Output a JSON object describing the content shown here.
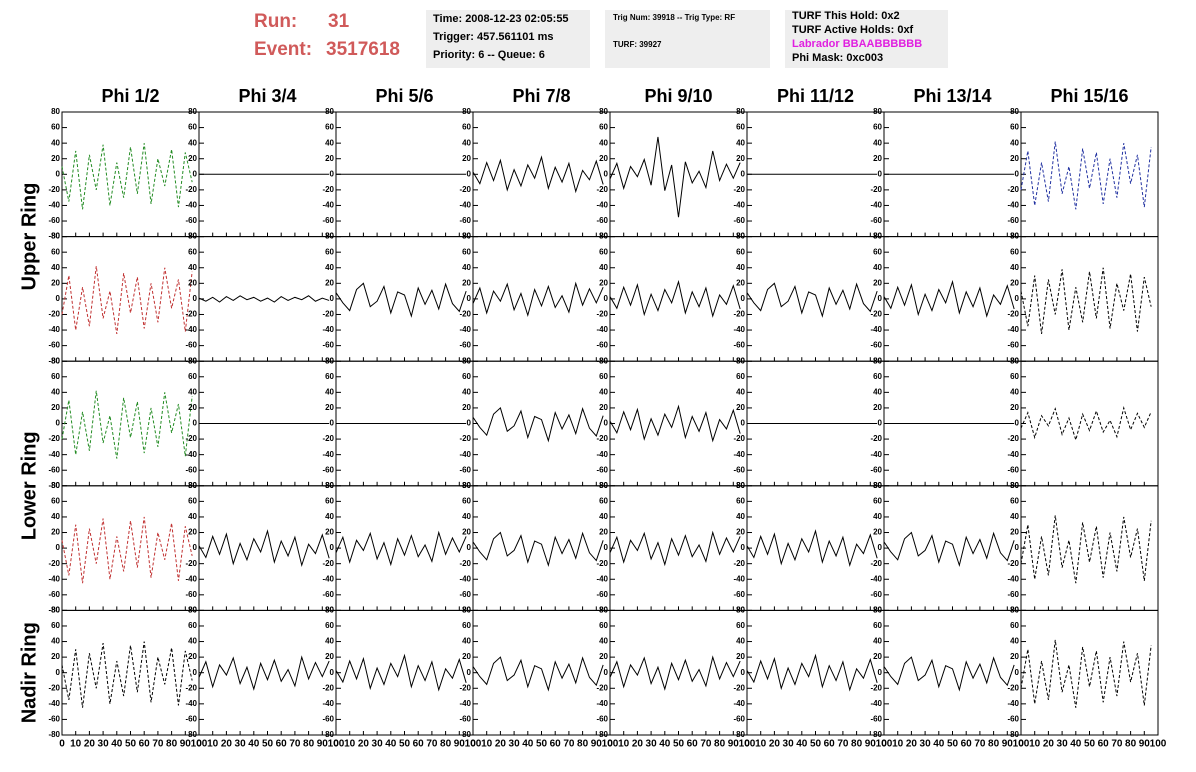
{
  "header": {
    "run_label": "Run:",
    "run": "31",
    "event_label": "Event:",
    "event": "3517618"
  },
  "info_boxes": [
    [
      "Time: 2008-12-23 02:05:55",
      "Trigger: 457.561101 ms",
      "Priority: 6 -- Queue: 6"
    ],
    [
      "Trig Num: 39918 -- Trig Type: RF",
      "TURF: 39927"
    ],
    [
      "TURF This Hold: 0x2",
      "TURF Active Holds: 0xf",
      "Labrador BBAABBBBBB",
      "Phi Mask: 0xc003"
    ]
  ],
  "chart_data": {
    "type": "line",
    "columns": [
      "Phi 1/2",
      "Phi 3/4",
      "Phi 5/6",
      "Phi 7/8",
      "Phi 9/10",
      "Phi 11/12",
      "Phi 13/14",
      "Phi 15/16"
    ],
    "rows": [
      "Upper Ring",
      "Lower Ring",
      "Nadir Ring"
    ],
    "x": [
      0,
      5,
      10,
      15,
      20,
      25,
      30,
      35,
      40,
      45,
      50,
      55,
      60,
      65,
      70,
      75,
      80,
      85,
      90,
      95
    ],
    "xlim": [
      0,
      100
    ],
    "ylim": [
      -80,
      80
    ],
    "xticks": [
      0,
      10,
      20,
      30,
      40,
      50,
      60,
      70,
      80,
      90,
      100
    ],
    "yticks": [
      -80,
      -60,
      -40,
      -20,
      0,
      20,
      40,
      60,
      80
    ],
    "series": [
      {
        "color": "#228b22",
        "dashed": true,
        "values": [
          10,
          -35,
          30,
          -45,
          25,
          -20,
          38,
          -40,
          15,
          -30,
          35,
          -25,
          40,
          -38,
          20,
          -15,
          32,
          -42,
          28,
          -10
        ]
      },
      {
        "color": "#000000",
        "dashed": false,
        "values": [
          0,
          0,
          0,
          0,
          0,
          0,
          0,
          0,
          0,
          0,
          0,
          0,
          0,
          0,
          0,
          0,
          0,
          0,
          0,
          0
        ]
      },
      {
        "color": "#000000",
        "dashed": false,
        "values": [
          0,
          0,
          0,
          0,
          0,
          0,
          0,
          0,
          0,
          0,
          0,
          0,
          0,
          0,
          0,
          0,
          0,
          0,
          0,
          0
        ]
      },
      {
        "color": "#000000",
        "dashed": false,
        "values": [
          3,
          -12,
          15,
          -8,
          18,
          -20,
          6,
          -15,
          12,
          -5,
          22,
          -18,
          9,
          -10,
          14,
          -22,
          5,
          -7,
          17,
          -13
        ]
      },
      {
        "color": "#000000",
        "dashed": false,
        "values": [
          -6,
          14,
          -18,
          10,
          -3,
          19,
          -14,
          48,
          -21,
          12,
          -55,
          16,
          -11,
          4,
          -17,
          30,
          -8,
          13,
          -5,
          15
        ]
      },
      {
        "color": "#000000",
        "dashed": false,
        "values": [
          0,
          0,
          0,
          0,
          0,
          0,
          0,
          0,
          0,
          0,
          0,
          0,
          0,
          0,
          0,
          0,
          0,
          0,
          0,
          0
        ]
      },
      {
        "color": "#000000",
        "dashed": false,
        "values": [
          0,
          0,
          0,
          0,
          0,
          0,
          0,
          0,
          0,
          0,
          0,
          0,
          0,
          0,
          0,
          0,
          0,
          0,
          0,
          0
        ]
      },
      {
        "color": "#2030a0",
        "dashed": true,
        "values": [
          -20,
          30,
          -40,
          15,
          -35,
          42,
          -25,
          10,
          -45,
          33,
          -18,
          28,
          -38,
          20,
          -30,
          40,
          -12,
          25,
          -42,
          35
        ]
      },
      {
        "color": "#c03030",
        "dashed": true,
        "values": [
          -20,
          30,
          -40,
          15,
          -35,
          42,
          -25,
          10,
          -45,
          33,
          -18,
          28,
          -38,
          20,
          -30,
          40,
          -12,
          25,
          -42,
          35
        ]
      },
      {
        "color": "#000000",
        "dashed": false,
        "values": [
          1,
          -3,
          2,
          -4,
          3,
          -2,
          4,
          -1,
          2,
          -3,
          1,
          -4,
          3,
          -2,
          2,
          -1,
          4,
          -3,
          1,
          -2
        ]
      },
      {
        "color": "#000000",
        "dashed": false,
        "values": [
          8,
          -5,
          -15,
          12,
          20,
          -10,
          -3,
          16,
          -18,
          9,
          5,
          -22,
          14,
          -7,
          11,
          -13,
          19,
          -6,
          -16,
          10
        ]
      },
      {
        "color": "#000000",
        "dashed": false,
        "values": [
          -6,
          14,
          -18,
          10,
          -3,
          19,
          -14,
          7,
          -21,
          12,
          -9,
          16,
          -11,
          4,
          -17,
          20,
          -8,
          13,
          -5,
          15
        ]
      },
      {
        "color": "#000000",
        "dashed": false,
        "values": [
          3,
          -12,
          15,
          -8,
          18,
          -20,
          6,
          -15,
          12,
          -5,
          22,
          -18,
          9,
          -10,
          14,
          -22,
          5,
          -7,
          17,
          -13
        ]
      },
      {
        "color": "#000000",
        "dashed": false,
        "values": [
          8,
          -5,
          -15,
          12,
          20,
          -10,
          -3,
          16,
          -18,
          9,
          5,
          -22,
          14,
          -7,
          11,
          -13,
          19,
          -6,
          -16,
          10
        ]
      },
      {
        "color": "#000000",
        "dashed": false,
        "values": [
          3,
          -12,
          15,
          -8,
          18,
          -20,
          6,
          -15,
          12,
          -5,
          22,
          -18,
          9,
          -10,
          14,
          -22,
          5,
          -7,
          17,
          -13
        ]
      },
      {
        "color": "#000000",
        "dashed": true,
        "values": [
          10,
          -35,
          30,
          -45,
          25,
          -20,
          38,
          -40,
          15,
          -30,
          35,
          -25,
          40,
          -38,
          20,
          -15,
          32,
          -42,
          28,
          -10
        ]
      },
      {
        "color": "#228b22",
        "dashed": true,
        "values": [
          -20,
          30,
          -40,
          15,
          -35,
          42,
          -25,
          10,
          -45,
          33,
          -18,
          28,
          -38,
          20,
          -30,
          40,
          -12,
          25,
          -42,
          35
        ]
      },
      {
        "color": "#000000",
        "dashed": false,
        "values": [
          0,
          0,
          0,
          0,
          0,
          0,
          0,
          0,
          0,
          0,
          0,
          0,
          0,
          0,
          0,
          0,
          0,
          0,
          0,
          0
        ]
      },
      {
        "color": "#000000",
        "dashed": false,
        "values": [
          0,
          0,
          0,
          0,
          0,
          0,
          0,
          0,
          0,
          0,
          0,
          0,
          0,
          0,
          0,
          0,
          0,
          0,
          0,
          0
        ]
      },
      {
        "color": "#000000",
        "dashed": false,
        "values": [
          8,
          -5,
          -15,
          12,
          20,
          -10,
          -3,
          16,
          -18,
          9,
          5,
          -22,
          14,
          -7,
          11,
          -13,
          19,
          -6,
          -16,
          10
        ]
      },
      {
        "color": "#000000",
        "dashed": false,
        "values": [
          3,
          -12,
          15,
          -8,
          18,
          -20,
          6,
          -15,
          12,
          -5,
          22,
          -18,
          9,
          -10,
          14,
          -22,
          5,
          -7,
          17,
          -13
        ]
      },
      {
        "color": "#000000",
        "dashed": false,
        "values": [
          0,
          0,
          0,
          0,
          0,
          0,
          0,
          0,
          0,
          0,
          0,
          0,
          0,
          0,
          0,
          0,
          0,
          0,
          0,
          0
        ]
      },
      {
        "color": "#000000",
        "dashed": false,
        "values": [
          0,
          0,
          0,
          0,
          0,
          0,
          0,
          0,
          0,
          0,
          0,
          0,
          0,
          0,
          0,
          0,
          0,
          0,
          0,
          0
        ]
      },
      {
        "color": "#000000",
        "dashed": true,
        "values": [
          -6,
          14,
          -18,
          10,
          -3,
          19,
          -14,
          7,
          -21,
          12,
          -9,
          16,
          -11,
          4,
          -17,
          20,
          -8,
          13,
          -5,
          15
        ]
      },
      {
        "color": "#c03030",
        "dashed": true,
        "values": [
          10,
          -35,
          30,
          -45,
          25,
          -20,
          38,
          -40,
          15,
          -30,
          35,
          -25,
          40,
          -38,
          20,
          -15,
          32,
          -42,
          28,
          -10
        ]
      },
      {
        "color": "#000000",
        "dashed": false,
        "values": [
          3,
          -12,
          15,
          -8,
          18,
          -20,
          6,
          -15,
          12,
          -5,
          22,
          -18,
          9,
          -10,
          14,
          -22,
          5,
          -7,
          17,
          -13
        ]
      },
      {
        "color": "#000000",
        "dashed": false,
        "values": [
          -6,
          14,
          -18,
          10,
          -3,
          19,
          -14,
          7,
          -21,
          12,
          -9,
          16,
          -11,
          4,
          -17,
          20,
          -8,
          13,
          -5,
          15
        ]
      },
      {
        "color": "#000000",
        "dashed": false,
        "values": [
          8,
          -5,
          -15,
          12,
          20,
          -10,
          -3,
          16,
          -18,
          9,
          5,
          -22,
          14,
          -7,
          11,
          -13,
          19,
          -6,
          -16,
          10
        ]
      },
      {
        "color": "#000000",
        "dashed": false,
        "values": [
          -6,
          14,
          -18,
          10,
          -3,
          19,
          -14,
          7,
          -21,
          12,
          -9,
          16,
          -11,
          4,
          -17,
          20,
          -8,
          13,
          -5,
          15
        ]
      },
      {
        "color": "#000000",
        "dashed": false,
        "values": [
          3,
          -12,
          15,
          -8,
          18,
          -20,
          6,
          -15,
          12,
          -5,
          22,
          -18,
          9,
          -10,
          14,
          -22,
          5,
          -7,
          17,
          -13
        ]
      },
      {
        "color": "#000000",
        "dashed": false,
        "values": [
          8,
          -5,
          -15,
          12,
          20,
          -10,
          -3,
          16,
          -18,
          9,
          5,
          -22,
          14,
          -7,
          11,
          -13,
          19,
          -6,
          -16,
          10
        ]
      },
      {
        "color": "#000000",
        "dashed": true,
        "values": [
          -20,
          30,
          -40,
          15,
          -35,
          42,
          -25,
          10,
          -45,
          33,
          -18,
          28,
          -38,
          20,
          -30,
          40,
          -12,
          25,
          -42,
          35
        ]
      },
      {
        "color": "#000000",
        "dashed": true,
        "values": [
          10,
          -35,
          30,
          -45,
          25,
          -20,
          38,
          -40,
          15,
          -30,
          35,
          -25,
          40,
          -38,
          20,
          -15,
          32,
          -42,
          28,
          -10
        ]
      },
      {
        "color": "#000000",
        "dashed": false,
        "values": [
          -6,
          14,
          -18,
          10,
          -3,
          19,
          -14,
          7,
          -21,
          12,
          -9,
          16,
          -11,
          4,
          -17,
          20,
          -8,
          13,
          -5,
          15
        ]
      },
      {
        "color": "#000000",
        "dashed": false,
        "values": [
          3,
          -12,
          15,
          -8,
          18,
          -20,
          6,
          -15,
          12,
          -5,
          22,
          -18,
          9,
          -10,
          14,
          -22,
          5,
          -7,
          17,
          -13
        ]
      },
      {
        "color": "#000000",
        "dashed": false,
        "values": [
          8,
          -5,
          -15,
          12,
          20,
          -10,
          -3,
          16,
          -18,
          9,
          5,
          -22,
          14,
          -7,
          11,
          -13,
          19,
          -6,
          -16,
          10
        ]
      },
      {
        "color": "#000000",
        "dashed": false,
        "values": [
          -6,
          14,
          -18,
          10,
          -3,
          19,
          -14,
          7,
          -21,
          12,
          -9,
          16,
          -11,
          4,
          -17,
          20,
          -8,
          13,
          -5,
          15
        ]
      },
      {
        "color": "#000000",
        "dashed": false,
        "values": [
          3,
          -12,
          15,
          -8,
          18,
          -20,
          6,
          -15,
          12,
          -5,
          22,
          -18,
          9,
          -10,
          14,
          -22,
          5,
          -7,
          17,
          -13
        ]
      },
      {
        "color": "#000000",
        "dashed": false,
        "values": [
          8,
          -5,
          -15,
          12,
          20,
          -10,
          -3,
          16,
          -18,
          9,
          5,
          -22,
          14,
          -7,
          11,
          -13,
          19,
          -6,
          -16,
          10
        ]
      },
      {
        "color": "#000000",
        "dashed": true,
        "values": [
          -20,
          30,
          -40,
          15,
          -35,
          42,
          -25,
          10,
          -45,
          33,
          -18,
          28,
          -38,
          20,
          -30,
          40,
          -12,
          25,
          -42,
          35
        ]
      }
    ]
  }
}
